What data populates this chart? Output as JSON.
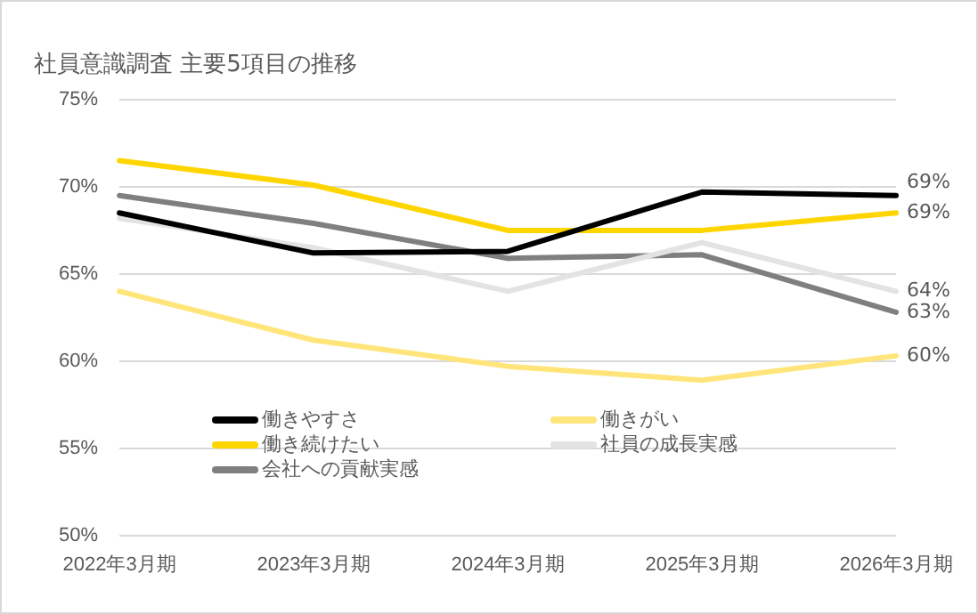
{
  "chart_data": {
    "type": "line",
    "title": "社員意識調査 主要5項目の推移",
    "categories": [
      "2022年3月期",
      "2023年3月期",
      "2024年3月期",
      "2025年3月期",
      "2026年3月期"
    ],
    "series": [
      {
        "name": "働きやすさ",
        "color": "#000000",
        "values": [
          68.5,
          66.2,
          66.3,
          69.7,
          69.5
        ],
        "value_labels": [
          null,
          null,
          null,
          null,
          "69%"
        ]
      },
      {
        "name": "働きがい",
        "color": "#ffe57a",
        "values": [
          64.0,
          61.2,
          59.7,
          58.9,
          60.3
        ],
        "value_labels": [
          null,
          null,
          null,
          null,
          "60%"
        ]
      },
      {
        "name": "働き続けたい",
        "color": "#ffd500",
        "values": [
          71.5,
          70.1,
          67.5,
          67.5,
          68.5
        ],
        "value_labels": [
          null,
          null,
          null,
          null,
          "69%"
        ]
      },
      {
        "name": "社員の成長実感",
        "color": "#e3e3e3",
        "values": [
          68.2,
          66.5,
          64.0,
          66.8,
          64.0
        ],
        "value_labels": [
          null,
          null,
          null,
          null,
          "64%"
        ]
      },
      {
        "name": "会社への貢献実感",
        "color": "#7f7f7f",
        "values": [
          69.5,
          67.9,
          65.9,
          66.1,
          62.8
        ],
        "value_labels": [
          null,
          null,
          null,
          null,
          "63%"
        ]
      }
    ],
    "ylim": [
      50,
      75
    ],
    "yticks": [
      {
        "value": 50,
        "label": "50%"
      },
      {
        "value": 55,
        "label": "55%"
      },
      {
        "value": 60,
        "label": "60%"
      },
      {
        "value": 65,
        "label": "65%"
      },
      {
        "value": 70,
        "label": "70%"
      },
      {
        "value": 75,
        "label": "75%"
      }
    ],
    "grid": "y",
    "legend": "bottom left",
    "marker": "none",
    "line_style": "solid"
  }
}
